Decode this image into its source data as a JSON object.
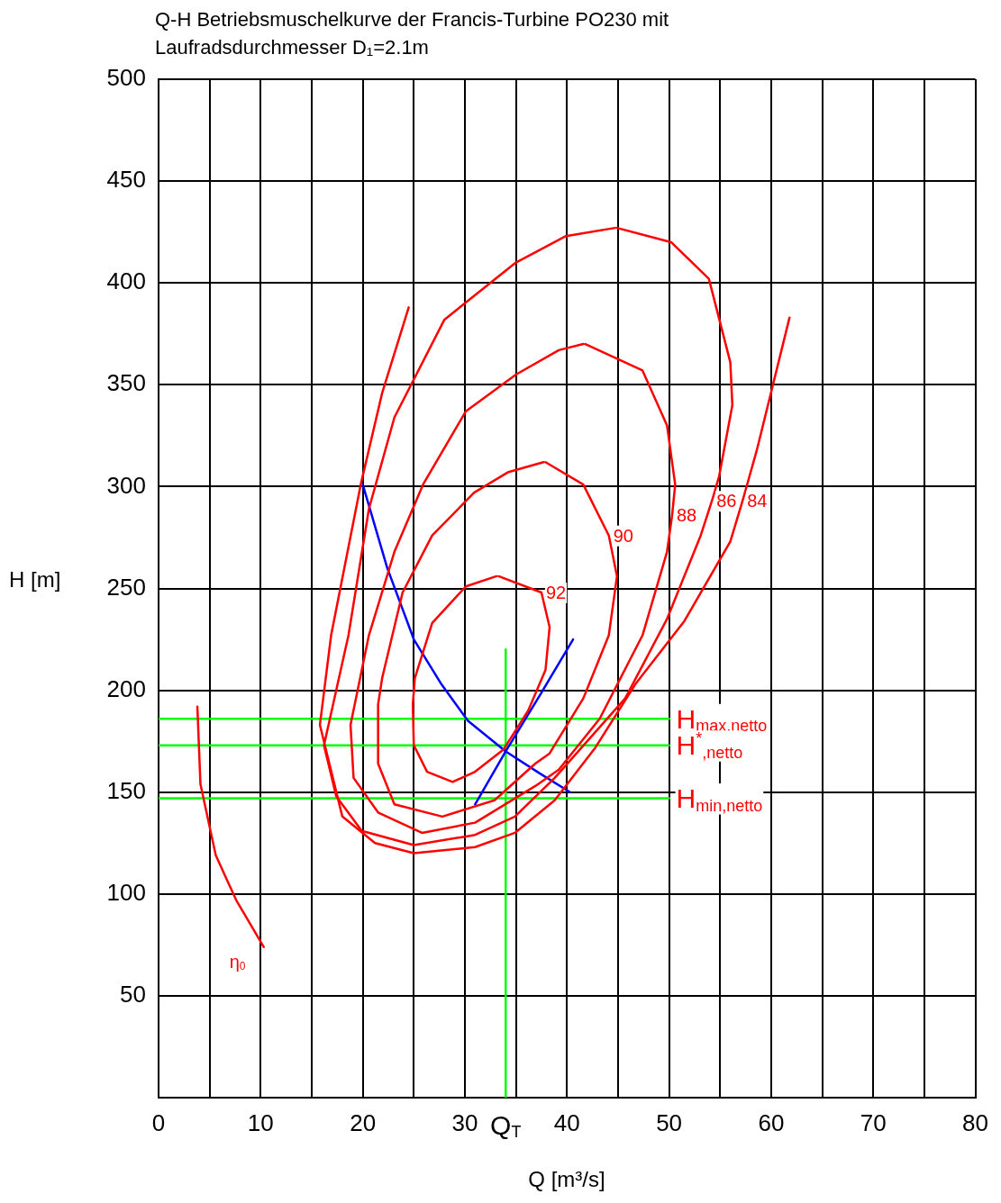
{
  "chart_data": {
    "type": "line",
    "title": "Q-H Betriebsmuschelkurve der Francis-Turbine PO230 mit Laufradsdurchmesser D₁=2.1m",
    "xlabel": "Q [m³/s]",
    "ylabel": "H [m]",
    "xlim": [
      0,
      80
    ],
    "ylim": [
      0,
      500
    ],
    "xticks": [
      0,
      {
        "value": 5,
        "label": null
      },
      10,
      {
        "value": 15,
        "label": null
      },
      20,
      {
        "value": 25,
        "label": null
      },
      30,
      {
        "value": 35,
        "label": null
      },
      40,
      {
        "value": 45,
        "label": null
      },
      50,
      {
        "value": 55,
        "label": null
      },
      60,
      {
        "value": 65,
        "label": null
      },
      70,
      {
        "value": 75,
        "label": null
      },
      80
    ],
    "yticks": [
      {
        "value": 0,
        "label": null
      },
      50,
      100,
      150,
      200,
      250,
      300,
      350,
      400,
      450,
      500
    ],
    "grid": true,
    "marker": "none",
    "line_style": "solid",
    "series": [
      {
        "color": "#ff0000",
        "x": [
          24.5,
          21.9,
          19.8,
          16.9,
          15.8,
          18.0,
          21.2,
          25.0,
          31.0,
          34.9,
          38.8,
          42.8,
          46.7,
          51.5,
          56.0,
          57.2,
          58.6,
          61.8
        ],
        "values": [
          388,
          346,
          301,
          227,
          183,
          138,
          125,
          120,
          123,
          130,
          146,
          172,
          203,
          234,
          273,
          293,
          318,
          383
        ]
      },
      {
        "color": "#fe0000",
        "x": [
          44.9,
          50.2,
          53.9,
          56.0,
          56.2,
          54.9,
          54.2,
          53.1,
          49.8,
          45.7,
          38.8,
          34.9,
          31.0,
          25.0,
          19.9,
          17.4,
          16.2,
          18.6,
          20.6,
          23.1,
          28.0,
          35.0,
          39.9,
          44.7
        ],
        "values": [
          427,
          420,
          402,
          361,
          340,
          305,
          293,
          276,
          235,
          196,
          157,
          138,
          129,
          124,
          131,
          148,
          173,
          227,
          289,
          334,
          382,
          410,
          423,
          427
        ]
      },
      {
        "color": "#fd0101",
        "x": [
          41.8,
          47.4,
          49.8,
          50.6,
          50.3,
          49.8,
          47.4,
          43.2,
          39.2,
          36.9,
          31.0,
          25.8,
          21.5,
          19.1,
          18.8,
          20.6,
          23.1,
          25.9,
          30.1,
          35.0,
          39.2,
          41.6
        ],
        "values": [
          370,
          357,
          330,
          301,
          286,
          268,
          227,
          186,
          161,
          153,
          135,
          130,
          140,
          157,
          183,
          227,
          268,
          301,
          337,
          355,
          367,
          370
        ]
      },
      {
        "color": "#fc0202",
        "x": [
          37.9,
          41.6,
          44.1,
          44.9,
          44.1,
          41.6,
          38.3,
          36.9,
          32.9,
          27.8,
          23.1,
          21.5,
          21.5,
          21.9,
          23.9,
          26.8,
          30.9,
          34.2,
          37.7
        ],
        "values": [
          312,
          301,
          276,
          256,
          227,
          196,
          169,
          164,
          146,
          138,
          144,
          164,
          193,
          206,
          248,
          276,
          297,
          307,
          312
        ]
      },
      {
        "color": "#fb0303",
        "x": [
          33.3,
          37.5,
          38.3,
          37.9,
          36.2,
          33.8,
          31.0,
          28.8,
          26.3,
          25.0,
          24.9,
          25.1,
          26.8,
          30.1,
          33.1
        ],
        "values": [
          256,
          248,
          231,
          210,
          190,
          171,
          160,
          155,
          160,
          173,
          193,
          206,
          233,
          251,
          256
        ]
      },
      {
        "color": "#fa0404",
        "x": [
          3.8,
          4.1,
          5.6,
          7.6,
          10.3
        ],
        "values": [
          192,
          154,
          119,
          97,
          74
        ]
      },
      {
        "color": "#0000ff",
        "x": [
          20.0,
          22.4,
          25.0,
          27.7,
          30.3,
          34.0,
          37.4,
          40.3
        ],
        "values": [
          301,
          260,
          225,
          203,
          185,
          170,
          159,
          150
        ]
      },
      {
        "color": "#0101fe",
        "x": [
          31.0,
          34.0,
          37.4,
          40.6
        ],
        "values": [
          144,
          170,
          198,
          225
        ]
      },
      {
        "color": "#00ff00",
        "x": [
          0,
          50
        ],
        "values": [
          186,
          186
        ]
      },
      {
        "color": "#01fe01",
        "x": [
          0,
          50
        ],
        "values": [
          173,
          173
        ]
      },
      {
        "color": "#02fd02",
        "x": [
          0,
          50
        ],
        "values": [
          147,
          147
        ]
      },
      {
        "color": "#03fc03",
        "x": [
          34,
          34
        ],
        "values": [
          0,
          220
        ]
      }
    ],
    "annotations": [
      {
        "text": "92",
        "x": 37.5,
        "y": 248
      },
      {
        "text": "90",
        "x": 44.1,
        "y": 276
      },
      {
        "text": "88",
        "x": 50.3,
        "y": 286
      },
      {
        "text": "86",
        "x": 54.2,
        "y": 293
      },
      {
        "text": "84",
        "x": 57.2,
        "y": 293
      },
      {
        "text": "H$_{max,netto}$",
        "x": 50,
        "y": 186
      },
      {
        "text": "H$^{*}$$_{,netto}$",
        "x": 50,
        "y": 173
      },
      {
        "text": "H$_{min,netto}$",
        "x": 50,
        "y": 147
      },
      {
        "text": "η$_{0}$",
        "x": 10.3,
        "y": 74
      },
      {
        "text": "Q$_{T}$",
        "x": 34,
        "y": 0
      }
    ]
  }
}
